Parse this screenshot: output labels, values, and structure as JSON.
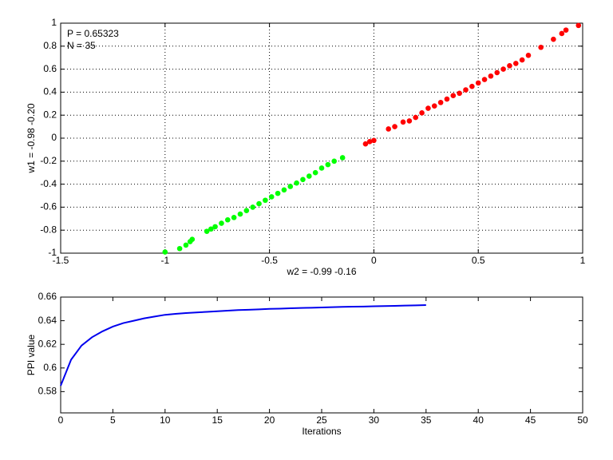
{
  "chart_data": [
    {
      "type": "scatter",
      "annotations": [
        "P = 0.65323",
        "N = 35"
      ],
      "xlabel": "w2 = -0.99  -0.16",
      "ylabel": "w1 = -0.98  -0.20",
      "xlim": [
        -1.5,
        1
      ],
      "ylim": [
        -1,
        1
      ],
      "xticks": [
        -1.5,
        -1,
        -0.5,
        0,
        0.5,
        1
      ],
      "yticks": [
        -1,
        -0.8,
        -0.6,
        -0.4,
        -0.2,
        0,
        0.2,
        0.4,
        0.6,
        0.8,
        1
      ],
      "grid": true,
      "series": [
        {
          "color": "#00ff00",
          "x": [
            -1,
            -0.93,
            -0.9,
            -0.88,
            -0.87,
            -0.8,
            -0.78,
            -0.76,
            -0.73,
            -0.7,
            -0.67,
            -0.64,
            -0.61,
            -0.58,
            -0.55,
            -0.52,
            -0.49,
            -0.46,
            -0.43,
            -0.4,
            -0.37,
            -0.34,
            -0.31,
            -0.28,
            -0.25,
            -0.22,
            -0.19,
            -0.15
          ],
          "values": [
            -0.99,
            -0.96,
            -0.93,
            -0.9,
            -0.88,
            -0.81,
            -0.79,
            -0.77,
            -0.74,
            -0.71,
            -0.69,
            -0.66,
            -0.63,
            -0.6,
            -0.57,
            -0.54,
            -0.51,
            -0.48,
            -0.45,
            -0.42,
            -0.39,
            -0.36,
            -0.33,
            -0.3,
            -0.26,
            -0.23,
            -0.2,
            -0.17
          ]
        },
        {
          "color": "#ff0000",
          "x": [
            -0.04,
            -0.02,
            0,
            0.07,
            0.1,
            0.14,
            0.17,
            0.2,
            0.23,
            0.26,
            0.29,
            0.32,
            0.35,
            0.38,
            0.41,
            0.44,
            0.47,
            0.5,
            0.53,
            0.56,
            0.59,
            0.62,
            0.65,
            0.68,
            0.71,
            0.74,
            0.8,
            0.86,
            0.9,
            0.92,
            0.98
          ],
          "values": [
            -0.05,
            -0.03,
            -0.02,
            0.08,
            0.1,
            0.14,
            0.15,
            0.18,
            0.22,
            0.26,
            0.28,
            0.31,
            0.34,
            0.37,
            0.39,
            0.42,
            0.45,
            0.48,
            0.51,
            0.54,
            0.57,
            0.6,
            0.63,
            0.65,
            0.68,
            0.72,
            0.79,
            0.86,
            0.91,
            0.94,
            0.98
          ]
        }
      ]
    },
    {
      "type": "line",
      "xlabel": "Iterations",
      "ylabel": "PPI value",
      "xlim": [
        0,
        50
      ],
      "ylim": [
        0.562,
        0.66
      ],
      "xticks": [
        0,
        5,
        10,
        15,
        20,
        25,
        30,
        35,
        40,
        45,
        50
      ],
      "yticks": [
        0.58,
        0.6,
        0.62,
        0.64,
        0.66
      ],
      "grid": false,
      "x": [
        0,
        1,
        2,
        3,
        4,
        5,
        6,
        7,
        8,
        9,
        10,
        11,
        12,
        13,
        14,
        15,
        16,
        17,
        18,
        19,
        20,
        21,
        22,
        23,
        24,
        25,
        26,
        27,
        28,
        29,
        30,
        31,
        32,
        33,
        34,
        35
      ],
      "series": [
        {
          "color": "#0000ee",
          "values": [
            0.585,
            0.607,
            0.619,
            0.626,
            0.631,
            0.635,
            0.638,
            0.64,
            0.642,
            0.6435,
            0.645,
            0.6458,
            0.6465,
            0.647,
            0.6475,
            0.648,
            0.6485,
            0.649,
            0.6493,
            0.6496,
            0.65,
            0.6502,
            0.6505,
            0.6508,
            0.651,
            0.6512,
            0.6515,
            0.6517,
            0.6519,
            0.652,
            0.6522,
            0.6524,
            0.6526,
            0.6528,
            0.653,
            0.6532
          ]
        }
      ]
    }
  ]
}
